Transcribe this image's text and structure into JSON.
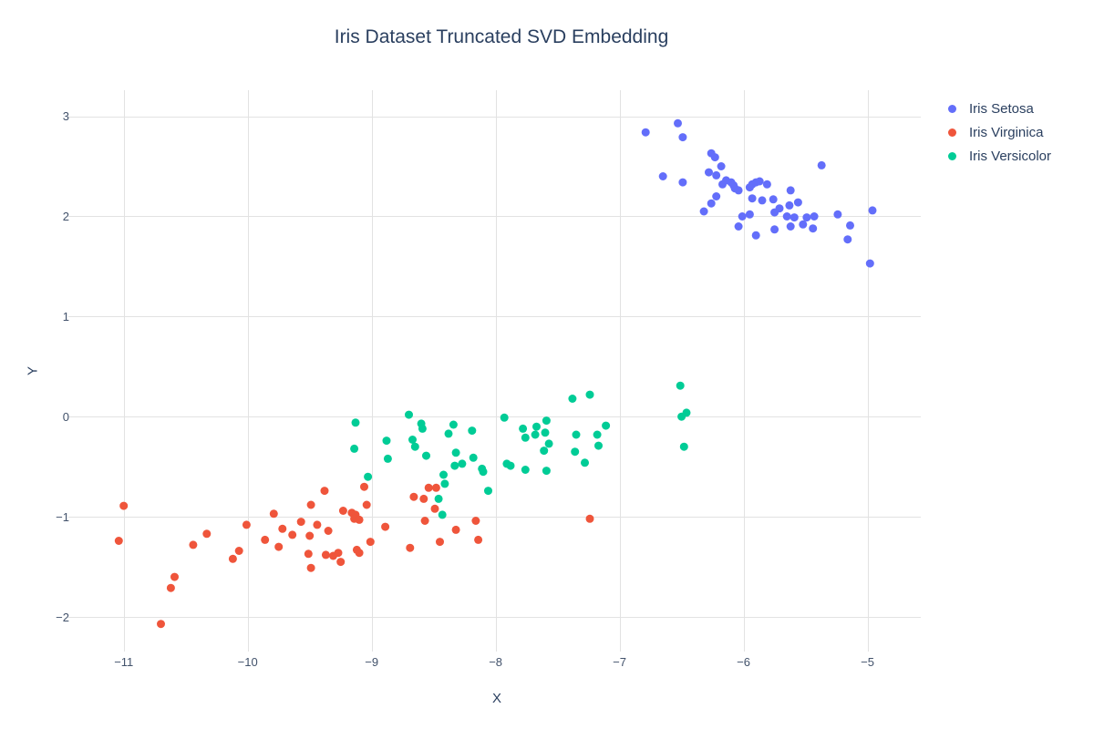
{
  "chart_data": {
    "type": "scatter",
    "title": "Iris Dataset Truncated SVD Embedding",
    "xlabel": "X",
    "ylabel": "Y",
    "xlim": [
      -11.41,
      -4.57
    ],
    "ylim": [
      -2.3,
      3.26
    ],
    "x_ticks": [
      -11,
      -10,
      -9,
      -8,
      -7,
      -6,
      -5
    ],
    "y_ticks": [
      -2,
      -1,
      0,
      1,
      2,
      3
    ],
    "grid": true,
    "grid_color": "#e2e2e2",
    "background_color": "#ffffff",
    "text_color": "#2a3f5f",
    "marker_size": 9,
    "legend_position": "right",
    "series": [
      {
        "name": "Iris Setosa",
        "color": "#636EFA",
        "x": [
          -6.79,
          -6.53,
          -6.49,
          -6.26,
          -6.23,
          -6.18,
          -6.28,
          -6.65,
          -6.22,
          -6.49,
          -6.14,
          -6.1,
          -6.08,
          -6.07,
          -6.04,
          -5.95,
          -5.93,
          -5.9,
          -5.87,
          -5.81,
          -5.37,
          -5.62,
          -5.93,
          -5.85,
          -5.76,
          -6.22,
          -6.26,
          -6.32,
          -5.71,
          -5.63,
          -5.75,
          -6.01,
          -5.95,
          -5.65,
          -5.59,
          -5.49,
          -5.43,
          -5.24,
          -4.96,
          -6.04,
          -5.75,
          -5.62,
          -5.52,
          -5.44,
          -5.9,
          -5.14,
          -5.16,
          -4.98,
          -5.56,
          -6.17
        ],
        "y": [
          2.84,
          2.93,
          2.79,
          2.63,
          2.59,
          2.5,
          2.44,
          2.4,
          2.41,
          2.34,
          2.36,
          2.34,
          2.31,
          2.28,
          2.26,
          2.29,
          2.32,
          2.34,
          2.35,
          2.32,
          2.51,
          2.26,
          2.18,
          2.16,
          2.17,
          2.2,
          2.13,
          2.05,
          2.08,
          2.11,
          2.04,
          2.0,
          2.02,
          2.0,
          1.99,
          1.99,
          2.0,
          2.02,
          2.06,
          1.9,
          1.87,
          1.9,
          1.92,
          1.88,
          1.81,
          1.91,
          1.77,
          1.53,
          2.14,
          2.32
        ]
      },
      {
        "name": "Iris Virginica",
        "color": "#EF553B",
        "x": [
          -11.04,
          -11.0,
          -10.7,
          -10.62,
          -10.59,
          -10.44,
          -10.33,
          -10.12,
          -10.07,
          -10.01,
          -9.86,
          -9.75,
          -9.79,
          -9.72,
          -9.64,
          -9.57,
          -9.49,
          -9.5,
          -9.51,
          -9.49,
          -9.38,
          -9.35,
          -9.37,
          -9.31,
          -9.27,
          -9.25,
          -9.23,
          -9.16,
          -9.13,
          -9.14,
          -9.1,
          -9.12,
          -9.1,
          -9.06,
          -9.04,
          -9.01,
          -8.89,
          -8.69,
          -8.66,
          -8.58,
          -8.57,
          -8.54,
          -8.48,
          -8.49,
          -8.45,
          -8.32,
          -8.16,
          -8.14,
          -7.24,
          -9.44
        ],
        "y": [
          -1.24,
          -0.89,
          -2.07,
          -1.71,
          -1.6,
          -1.28,
          -1.17,
          -1.42,
          -1.34,
          -1.08,
          -1.23,
          -1.3,
          -0.97,
          -1.12,
          -1.18,
          -1.05,
          -0.88,
          -1.19,
          -1.37,
          -1.51,
          -0.74,
          -1.14,
          -1.38,
          -1.39,
          -1.36,
          -1.45,
          -0.94,
          -0.96,
          -0.98,
          -1.02,
          -1.03,
          -1.33,
          -1.36,
          -0.7,
          -0.88,
          -1.25,
          -1.1,
          -1.31,
          -0.8,
          -0.82,
          -1.04,
          -0.71,
          -0.71,
          -0.92,
          -1.25,
          -1.13,
          -1.04,
          -1.23,
          -1.02,
          -1.08
        ]
      },
      {
        "name": "Iris Versicolor",
        "color": "#00CC96",
        "x": [
          -9.13,
          -9.14,
          -9.03,
          -8.88,
          -8.87,
          -8.7,
          -8.6,
          -8.59,
          -8.67,
          -8.65,
          -8.56,
          -8.34,
          -8.38,
          -8.19,
          -8.32,
          -8.33,
          -8.27,
          -8.18,
          -8.11,
          -8.42,
          -8.1,
          -8.41,
          -8.46,
          -8.43,
          -8.06,
          -7.93,
          -7.78,
          -7.76,
          -7.67,
          -7.68,
          -7.59,
          -7.6,
          -7.57,
          -7.61,
          -7.91,
          -7.88,
          -7.76,
          -7.59,
          -7.35,
          -7.36,
          -7.28,
          -7.18,
          -7.17,
          -7.11,
          -7.38,
          -7.24,
          -6.51,
          -6.5,
          -6.46,
          -6.48
        ],
        "y": [
          -0.06,
          -0.32,
          -0.6,
          -0.24,
          -0.42,
          0.02,
          -0.07,
          -0.12,
          -0.23,
          -0.3,
          -0.39,
          -0.08,
          -0.17,
          -0.14,
          -0.36,
          -0.49,
          -0.47,
          -0.41,
          -0.52,
          -0.58,
          -0.55,
          -0.67,
          -0.82,
          -0.98,
          -0.74,
          -0.01,
          -0.12,
          -0.21,
          -0.1,
          -0.18,
          -0.04,
          -0.16,
          -0.27,
          -0.34,
          -0.47,
          -0.49,
          -0.53,
          -0.54,
          -0.18,
          -0.35,
          -0.46,
          -0.18,
          -0.29,
          -0.09,
          0.18,
          0.22,
          0.31,
          0.0,
          0.04,
          -0.3
        ]
      }
    ]
  }
}
